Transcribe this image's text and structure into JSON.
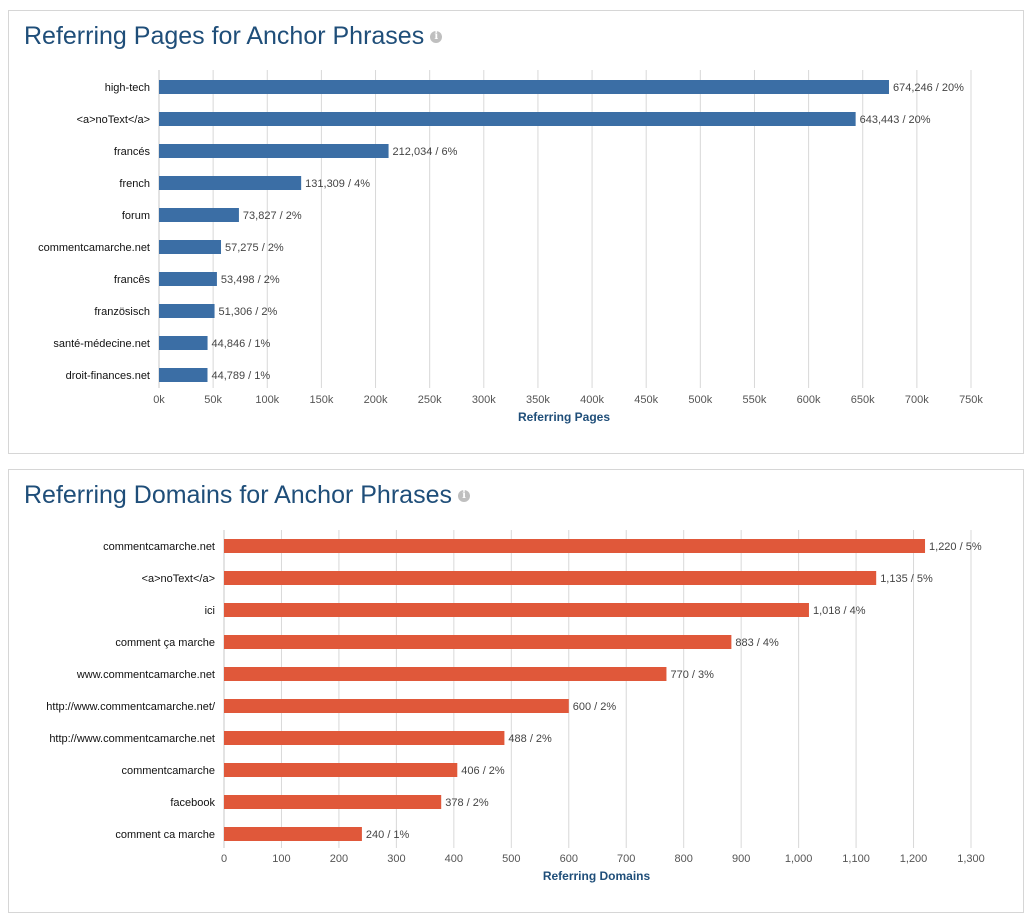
{
  "chart_data": [
    {
      "type": "bar",
      "orientation": "horizontal",
      "title": "Referring Pages for Anchor Phrases",
      "xlabel": "Referring Pages",
      "ylabel": "",
      "categories": [
        "high-tech",
        "<a>noText</a>",
        "francés",
        "french",
        "forum",
        "commentcamarche.net",
        "francês",
        "französisch",
        "santé-médecine.net",
        "droit-finances.net"
      ],
      "values": [
        674246,
        643443,
        212034,
        131309,
        73827,
        57275,
        53498,
        51306,
        44846,
        44789
      ],
      "data_labels": [
        "674,246 / 20%",
        "643,443 / 20%",
        "212,034 / 6%",
        "131,309 / 4%",
        "73,827 / 2%",
        "57,275 / 2%",
        "53,498 / 2%",
        "51,306 / 2%",
        "44,846 / 1%",
        "44,789 / 1%"
      ],
      "xlim": [
        0,
        750000
      ],
      "ticks": [
        0,
        50000,
        100000,
        150000,
        200000,
        250000,
        300000,
        350000,
        400000,
        450000,
        500000,
        550000,
        600000,
        650000,
        700000,
        750000
      ],
      "tick_labels": [
        "0k",
        "50k",
        "100k",
        "150k",
        "200k",
        "250k",
        "300k",
        "350k",
        "400k",
        "450k",
        "500k",
        "550k",
        "600k",
        "650k",
        "700k",
        "750k"
      ],
      "color": "#3b6ea5",
      "grid": true
    },
    {
      "type": "bar",
      "orientation": "horizontal",
      "title": "Referring Domains for Anchor Phrases",
      "xlabel": "Referring Domains",
      "ylabel": "",
      "categories": [
        "commentcamarche.net",
        "<a>noText</a>",
        "ici",
        "comment ça marche",
        "www.commentcamarche.net",
        "http://www.commentcamarche.net/",
        "http://www.commentcamarche.net",
        "commentcamarche",
        "facebook",
        "comment ca marche"
      ],
      "values": [
        1220,
        1135,
        1018,
        883,
        770,
        600,
        488,
        406,
        378,
        240
      ],
      "data_labels": [
        "1,220 / 5%",
        "1,135 / 5%",
        "1,018 / 4%",
        "883 / 4%",
        "770 / 3%",
        "600 / 2%",
        "488 / 2%",
        "406 / 2%",
        "378 / 2%",
        "240 / 1%"
      ],
      "xlim": [
        0,
        1300
      ],
      "ticks": [
        0,
        100,
        200,
        300,
        400,
        500,
        600,
        700,
        800,
        900,
        1000,
        1100,
        1200,
        1300
      ],
      "tick_labels": [
        "0",
        "100",
        "200",
        "300",
        "400",
        "500",
        "600",
        "700",
        "800",
        "900",
        "1,000",
        "1,100",
        "1,200",
        "1,300"
      ],
      "color": "#e0583a",
      "grid": true
    }
  ],
  "icons": {
    "info": "info-icon"
  },
  "info_glyph": "i"
}
